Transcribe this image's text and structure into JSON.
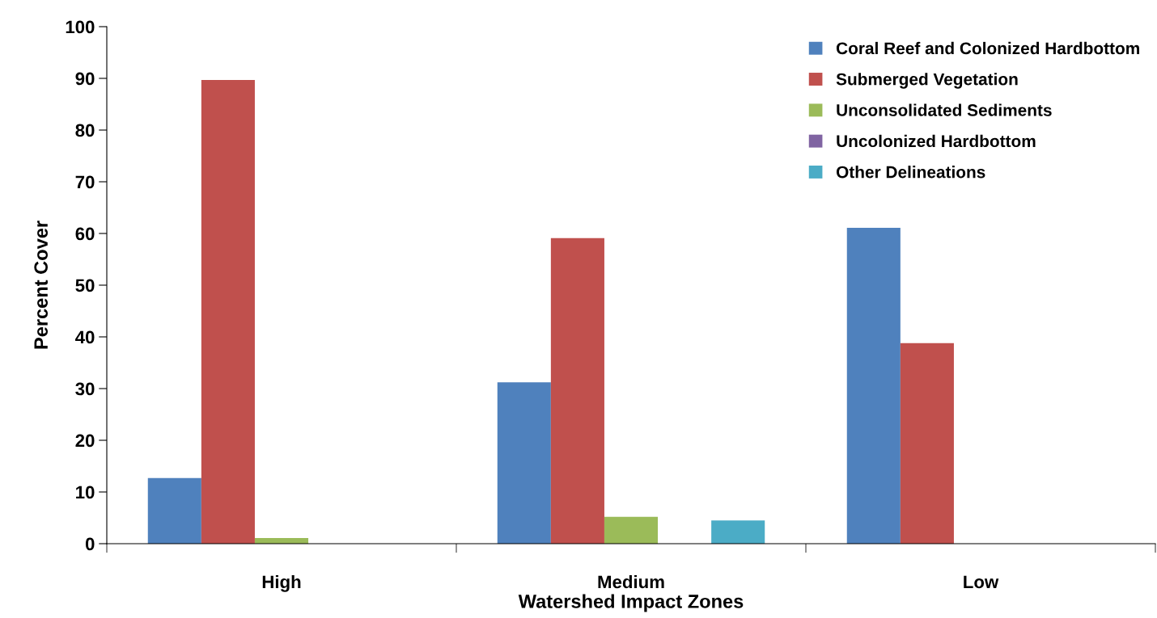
{
  "chart_data": {
    "type": "bar",
    "xlabel": "Watershed Impact Zones",
    "ylabel": "Percent Cover",
    "categories": [
      "High",
      "Medium",
      "Low"
    ],
    "series": [
      {
        "name": "Coral Reef and Colonized Hardbottom",
        "color": "#4f81bd",
        "values": [
          12.7,
          31.2,
          61.1
        ]
      },
      {
        "name": "Submerged Vegetation",
        "color": "#c0504d",
        "values": [
          89.7,
          59.1,
          38.8
        ]
      },
      {
        "name": "Unconsolidated Sediments",
        "color": "#9bbb59",
        "values": [
          1.1,
          5.2,
          0
        ]
      },
      {
        "name": "Uncolonized Hardbottom",
        "color": "#8064a2",
        "values": [
          0,
          0,
          0
        ]
      },
      {
        "name": "Other Delineations",
        "color": "#4bacc6",
        "values": [
          0,
          4.5,
          0
        ]
      }
    ],
    "ylim": [
      0,
      100
    ],
    "yticks": [
      0,
      10,
      20,
      30,
      40,
      50,
      60,
      70,
      80,
      90,
      100
    ],
    "grid": false,
    "legend": "top right"
  }
}
